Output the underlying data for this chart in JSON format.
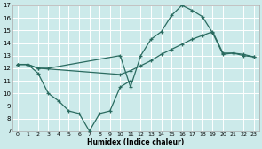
{
  "xlabel": "Humidex (Indice chaleur)",
  "background_color": "#cceaea",
  "grid_color": "#ffffff",
  "line_color": "#2a6b60",
  "xlim": [
    -0.5,
    23.5
  ],
  "ylim": [
    7,
    17
  ],
  "xticks": [
    0,
    1,
    2,
    3,
    4,
    5,
    6,
    7,
    8,
    9,
    10,
    11,
    12,
    13,
    14,
    15,
    16,
    17,
    18,
    19,
    20,
    21,
    22,
    23
  ],
  "yticks": [
    7,
    8,
    9,
    10,
    11,
    12,
    13,
    14,
    15,
    16,
    17
  ],
  "line1_x": [
    0,
    1,
    2,
    3,
    10,
    11,
    12,
    13,
    14,
    15,
    16,
    17,
    18,
    19,
    20,
    21,
    22,
    23
  ],
  "line1_y": [
    12.3,
    12.3,
    12.0,
    12.0,
    13.0,
    10.5,
    13.0,
    14.3,
    14.9,
    16.2,
    17.0,
    16.6,
    16.1,
    14.8,
    13.1,
    13.2,
    13.0,
    12.9
  ],
  "line2_x": [
    0,
    1,
    2,
    3,
    4,
    5,
    6,
    7,
    8,
    9,
    10,
    11
  ],
  "line2_y": [
    12.3,
    12.3,
    11.6,
    10.0,
    9.4,
    8.6,
    8.4,
    7.0,
    8.4,
    8.6,
    10.5,
    11.0
  ],
  "line3_x": [
    0,
    1,
    2,
    10,
    11,
    12,
    13,
    14,
    15,
    16,
    17,
    18,
    19,
    20,
    21,
    22,
    23
  ],
  "line3_y": [
    12.3,
    12.3,
    12.0,
    11.5,
    11.8,
    12.2,
    12.6,
    13.1,
    13.5,
    13.9,
    14.3,
    14.6,
    14.9,
    13.2,
    13.2,
    13.1,
    12.9
  ]
}
